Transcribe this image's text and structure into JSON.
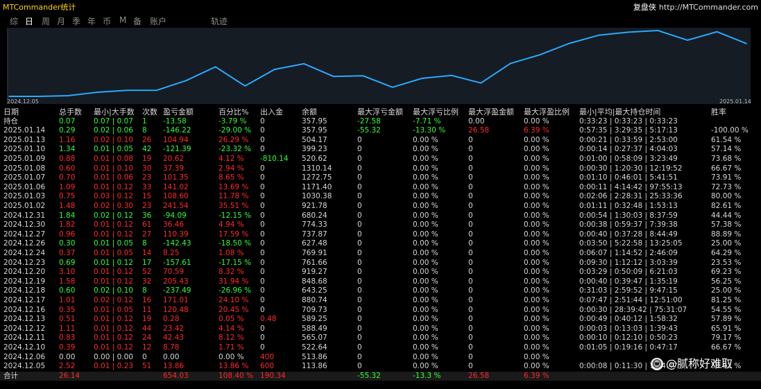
{
  "header": {
    "app_title": "MTCommander统计",
    "brand_name": "复盘侠",
    "brand_url": "http://MTCommander.com"
  },
  "tabs": [
    {
      "label": "综",
      "active": false
    },
    {
      "label": "日",
      "active": true
    },
    {
      "label": "周",
      "active": false
    },
    {
      "label": "月",
      "active": false
    },
    {
      "label": "季",
      "active": false
    },
    {
      "label": "年",
      "active": false
    },
    {
      "label": "币",
      "active": false
    },
    {
      "label": "M",
      "active": false
    },
    {
      "label": "备",
      "active": false
    },
    {
      "label": "账户",
      "active": false
    },
    {
      "label": "轨迹",
      "active": false
    }
  ],
  "chart_data": {
    "type": "line",
    "xlabel_start": "2024.12.05",
    "xlabel_end": "2025.01.14",
    "x": [
      "2024.12.05",
      "2024.12.06",
      "2024.12.10",
      "2024.12.11",
      "2024.12.12",
      "2024.12.13",
      "2024.12.16",
      "2024.12.17",
      "2024.12.18",
      "2024.12.19",
      "2024.12.20",
      "2024.12.23",
      "2024.12.24",
      "2024.12.26",
      "2024.12.27",
      "2024.12.30",
      "2024.12.31",
      "2025.01.02",
      "2025.01.03",
      "2025.01.06",
      "2025.01.07",
      "2025.01.08",
      "2025.01.09",
      "2025.01.10",
      "2025.01.13",
      "2025.01.14"
    ],
    "values": [
      13.86,
      13.86,
      22.64,
      65.07,
      88.49,
      88.77,
      209.25,
      380.26,
      142.77,
      348.2,
      418.79,
      261.18,
      269.43,
      126.95,
      237.34,
      273.8,
      179.71,
      421.3,
      530.2,
      671.22,
      772.35,
      809.74,
      830.36,
      709.97,
      814.91,
      668.69
    ],
    "line_color": "#29aaff"
  },
  "columns": [
    "日期",
    "总手数",
    "最小|大手数",
    "次数",
    "盈亏金额",
    "百分比%",
    "出入金",
    "余额",
    "最大浮亏金额",
    "最大浮亏比例",
    "最大浮盈金额",
    "最大浮盈比例",
    "最小|平均|最大持仓时间",
    "胜率"
  ],
  "rows": [
    {
      "date": "持仓",
      "c": "g",
      "lots": "0.07",
      "minmax": "0.07 | 0.07",
      "count": "1",
      "pnl": "-13.58",
      "pct": "-3.79 %",
      "io": "0",
      "io_c": "w",
      "bal": "357.95",
      "mfl": "-27.58",
      "mfl_c": "g",
      "mflp": "-7.71 %",
      "mflp_c": "g",
      "mfp": "0.00",
      "mfp_c": "w",
      "mfpp": "0.00 %",
      "mfpp_c": "w",
      "time": "0:33:23 | 0:33:23 | 0:33:23",
      "win": ""
    },
    {
      "date": "2025.01.14",
      "c": "g",
      "lots": "0.29",
      "minmax": "0.02 | 0.06",
      "count": "8",
      "pnl": "-146.22",
      "pct": "-29.00 %",
      "io": "0",
      "io_c": "w",
      "bal": "357.95",
      "mfl": "-55.32",
      "mfl_c": "g",
      "mflp": "-13.30 %",
      "mflp_c": "g",
      "mfp": "26.58",
      "mfp_c": "r",
      "mfpp": "6.39 %",
      "mfpp_c": "r",
      "time": "0:57:35 | 3:29:35 | 5:17:13",
      "win": "-100.00 %"
    },
    {
      "date": "2025.01.13",
      "c": "r",
      "lots": "1.16",
      "minmax": "0.02 | 0.10",
      "count": "26",
      "pnl": "104.94",
      "pct": "26.29 %",
      "io": "0",
      "io_c": "w",
      "bal": "504.17",
      "mfl": "0",
      "mfl_c": "w",
      "mflp": "0.00 %",
      "mflp_c": "w",
      "mfp": "0",
      "mfp_c": "w",
      "mfpp": "0.00 %",
      "mfpp_c": "w",
      "time": "0:00:21 | 0:33:59 | 2:53:00",
      "win": "61.54 %"
    },
    {
      "date": "2025.01.10",
      "c": "g",
      "lots": "1.34",
      "minmax": "0.01 | 0.05",
      "count": "42",
      "pnl": "-121.39",
      "pct": "-23.32 %",
      "io": "0",
      "io_c": "w",
      "bal": "399.23",
      "mfl": "0",
      "mfl_c": "w",
      "mflp": "0.00 %",
      "mflp_c": "w",
      "mfp": "0",
      "mfp_c": "w",
      "mfpp": "0.00 %",
      "mfpp_c": "w",
      "time": "0:00:14 | 0:27:37 | 4:04:03",
      "win": "57.14 %"
    },
    {
      "date": "2025.01.09",
      "c": "r",
      "lots": "0.88",
      "minmax": "0.01 | 0.08",
      "count": "19",
      "pnl": "20.62",
      "pct": "4.12 %",
      "io": "-810.14",
      "io_c": "g",
      "bal": "520.62",
      "mfl": "0",
      "mfl_c": "w",
      "mflp": "0.00 %",
      "mflp_c": "w",
      "mfp": "0",
      "mfp_c": "w",
      "mfpp": "0.00 %",
      "mfpp_c": "w",
      "time": "0:01:00 | 0:58:09 | 3:23:49",
      "win": "73.68 %"
    },
    {
      "date": "2025.01.08",
      "c": "r",
      "lots": "0.60",
      "minmax": "0.01 | 0.10",
      "count": "30",
      "pnl": "37.39",
      "pct": "2.94 %",
      "io": "0",
      "io_c": "w",
      "bal": "1310.14",
      "mfl": "0",
      "mfl_c": "w",
      "mflp": "0.00 %",
      "mflp_c": "w",
      "mfp": "0",
      "mfp_c": "w",
      "mfpp": "0.00 %",
      "mfpp_c": "w",
      "time": "0:00:30 | 1:20:30 | 12:19:52",
      "win": "66.67 %"
    },
    {
      "date": "2025.01.07",
      "c": "r",
      "lots": "0.70",
      "minmax": "0.01 | 0.06",
      "count": "23",
      "pnl": "101.35",
      "pct": "8.65 %",
      "io": "0",
      "io_c": "w",
      "bal": "1272.75",
      "mfl": "0",
      "mfl_c": "w",
      "mflp": "0.00 %",
      "mflp_c": "w",
      "mfp": "0",
      "mfp_c": "w",
      "mfpp": "0.00 %",
      "mfpp_c": "w",
      "time": "0:01:10 | 0:46:01 | 5:41:51",
      "win": "73.91 %"
    },
    {
      "date": "2025.01.06",
      "c": "r",
      "lots": "1.09",
      "minmax": "0.01 | 0.12",
      "count": "33",
      "pnl": "141.02",
      "pct": "13.69 %",
      "io": "0",
      "io_c": "w",
      "bal": "1171.40",
      "mfl": "0",
      "mfl_c": "w",
      "mflp": "0.00 %",
      "mflp_c": "w",
      "mfp": "0",
      "mfp_c": "w",
      "mfpp": "0.00 %",
      "mfpp_c": "w",
      "time": "0:00:11 | 4:14:42 | 97:55:13",
      "win": "72.73 %"
    },
    {
      "date": "2025.01.03",
      "c": "r",
      "lots": "0.75",
      "minmax": "0.03 | 0.12",
      "count": "15",
      "pnl": "108.60",
      "pct": "11.78 %",
      "io": "0",
      "io_c": "w",
      "bal": "1030.38",
      "mfl": "0",
      "mfl_c": "w",
      "mflp": "0.00 %",
      "mflp_c": "w",
      "mfp": "0",
      "mfp_c": "w",
      "mfpp": "0.00 %",
      "mfpp_c": "w",
      "time": "0:02:06 | 2:28:31 | 25:33:36",
      "win": "80.00 %"
    },
    {
      "date": "2025.01.02",
      "c": "r",
      "lots": "1.48",
      "minmax": "0.02 | 0.30",
      "count": "23",
      "pnl": "241.54",
      "pct": "35.51 %",
      "io": "0",
      "io_c": "w",
      "bal": "921.78",
      "mfl": "0",
      "mfl_c": "w",
      "mflp": "0.00 %",
      "mflp_c": "w",
      "mfp": "0",
      "mfp_c": "w",
      "mfpp": "0.00 %",
      "mfpp_c": "w",
      "time": "0:01:11 | 0:32:48 | 1:53:13",
      "win": "82.61 %"
    },
    {
      "date": "2024.12.31",
      "c": "g",
      "lots": "1.84",
      "minmax": "0.02 | 0.12",
      "count": "36",
      "pnl": "-94.09",
      "pct": "-12.15 %",
      "io": "0",
      "io_c": "w",
      "bal": "680.24",
      "mfl": "0",
      "mfl_c": "w",
      "mflp": "0.00 %",
      "mflp_c": "w",
      "mfp": "0",
      "mfp_c": "w",
      "mfpp": "0.00 %",
      "mfpp_c": "w",
      "time": "0:00:54 | 1:30:03 | 8:37:59",
      "win": "44.44 %"
    },
    {
      "date": "2024.12.30",
      "c": "r",
      "lots": "1.82",
      "minmax": "0.01 | 0.12",
      "count": "61",
      "pnl": "36.46",
      "pct": "4.94 %",
      "io": "0",
      "io_c": "w",
      "bal": "774.33",
      "mfl": "0",
      "mfl_c": "w",
      "mflp": "0.00 %",
      "mflp_c": "w",
      "mfp": "0",
      "mfp_c": "w",
      "mfpp": "0.00 %",
      "mfpp_c": "w",
      "time": "0:00:38 | 0:59:37 | 7:39:38",
      "win": "57.38 %"
    },
    {
      "date": "2024.12.27",
      "c": "r",
      "lots": "0.96",
      "minmax": "0.01 | 0.12",
      "count": "27",
      "pnl": "110.39",
      "pct": "17.59 %",
      "io": "0",
      "io_c": "w",
      "bal": "737.87",
      "mfl": "0",
      "mfl_c": "w",
      "mflp": "0.00 %",
      "mflp_c": "w",
      "mfp": "0",
      "mfp_c": "w",
      "mfpp": "0.00 %",
      "mfpp_c": "w",
      "time": "0:00:40 | 0:37:28 | 8:44:49",
      "win": "88.89 %"
    },
    {
      "date": "2024.12.26",
      "c": "g",
      "lots": "0.30",
      "minmax": "0.01 | 0.05",
      "count": "8",
      "pnl": "-142.43",
      "pct": "-18.50 %",
      "io": "0",
      "io_c": "w",
      "bal": "627.48",
      "mfl": "0",
      "mfl_c": "w",
      "mflp": "0.00 %",
      "mflp_c": "w",
      "mfp": "0",
      "mfp_c": "w",
      "mfpp": "0.00 %",
      "mfpp_c": "w",
      "time": "0:03:50 | 5:22:58 | 13:25:05",
      "win": "25.00 %"
    },
    {
      "date": "2024.12.24",
      "c": "r",
      "lots": "0.37",
      "minmax": "0.01 | 0.05",
      "count": "14",
      "pnl": "8.25",
      "pct": "1.08 %",
      "io": "0",
      "io_c": "w",
      "bal": "769.91",
      "mfl": "0",
      "mfl_c": "w",
      "mflp": "0.00 %",
      "mflp_c": "w",
      "mfp": "0",
      "mfp_c": "w",
      "mfpp": "0.00 %",
      "mfpp_c": "w",
      "time": "0:06:07 | 1:14:52 | 2:46:09",
      "win": "64.29 %"
    },
    {
      "date": "2024.12.23",
      "c": "g",
      "lots": "0.69",
      "minmax": "0.01 | 0.12",
      "count": "17",
      "pnl": "-157.61",
      "pct": "-17.15 %",
      "io": "0",
      "io_c": "w",
      "bal": "761.66",
      "mfl": "0",
      "mfl_c": "w",
      "mflp": "0.00 %",
      "mflp_c": "w",
      "mfp": "0",
      "mfp_c": "w",
      "mfpp": "0.00 %",
      "mfpp_c": "w",
      "time": "0:09:30 | 1:12:12 | 3:03:39",
      "win": "23.53 %"
    },
    {
      "date": "2024.12.20",
      "c": "r",
      "lots": "3.10",
      "minmax": "0.01 | 0.12",
      "count": "52",
      "pnl": "70.59",
      "pct": "8.32 %",
      "io": "0",
      "io_c": "w",
      "bal": "919.27",
      "mfl": "0",
      "mfl_c": "w",
      "mflp": "0.00 %",
      "mflp_c": "w",
      "mfp": "0",
      "mfp_c": "w",
      "mfpp": "0.00 %",
      "mfpp_c": "w",
      "time": "0:03:29 | 0:50:09 | 6:21:03",
      "win": "69.23 %"
    },
    {
      "date": "2024.12.19",
      "c": "r",
      "lots": "1.58",
      "minmax": "0.01 | 0.12",
      "count": "32",
      "pnl": "205.43",
      "pct": "31.94 %",
      "io": "0",
      "io_c": "w",
      "bal": "848.68",
      "mfl": "0",
      "mfl_c": "w",
      "mflp": "0.00 %",
      "mflp_c": "w",
      "mfp": "0",
      "mfp_c": "w",
      "mfpp": "0.00 %",
      "mfpp_c": "w",
      "time": "0:00:40 | 0:39:47 | 1:35:19",
      "win": "56.25 %"
    },
    {
      "date": "2024.12.18",
      "c": "g",
      "lots": "0.60",
      "minmax": "0.02 | 0.10",
      "count": "8",
      "pnl": "-237.49",
      "pct": "-26.96 %",
      "io": "0",
      "io_c": "w",
      "bal": "643.25",
      "mfl": "0",
      "mfl_c": "w",
      "mflp": "0.00 %",
      "mflp_c": "w",
      "mfp": "0",
      "mfp_c": "w",
      "mfpp": "0.00 %",
      "mfpp_c": "w",
      "time": "0:31:03 | 2:59:52 | 9:47:15",
      "win": "25.00 %"
    },
    {
      "date": "2024.12.17",
      "c": "r",
      "lots": "1.01",
      "minmax": "0.02 | 0.12",
      "count": "16",
      "pnl": "171.01",
      "pct": "24.10 %",
      "io": "0",
      "io_c": "w",
      "bal": "880.74",
      "mfl": "0",
      "mfl_c": "w",
      "mflp": "0.00 %",
      "mflp_c": "w",
      "mfp": "0",
      "mfp_c": "w",
      "mfpp": "0.00 %",
      "mfpp_c": "w",
      "time": "0:07:47 | 2:51:44 | 12:51:00",
      "win": "81.25 %"
    },
    {
      "date": "2024.12.16",
      "c": "r",
      "lots": "0.35",
      "minmax": "0.01 | 0.05",
      "count": "11",
      "pnl": "120.48",
      "pct": "20.45 %",
      "io": "0",
      "io_c": "w",
      "bal": "709.73",
      "mfl": "0",
      "mfl_c": "w",
      "mflp": "0.00 %",
      "mflp_c": "w",
      "mfp": "0",
      "mfp_c": "w",
      "mfpp": "0.00 %",
      "mfpp_c": "w",
      "time": "0:00:30 | 28:39:42 | 75:31:07",
      "win": "54.55 %"
    },
    {
      "date": "2024.12.13",
      "c": "r",
      "lots": "0.51",
      "minmax": "0.01 | 0.12",
      "count": "19",
      "pnl": "0.28",
      "pct": "0.05 %",
      "io": "0.48",
      "io_c": "r",
      "bal": "589.25",
      "mfl": "0",
      "mfl_c": "w",
      "mflp": "0.00 %",
      "mflp_c": "w",
      "mfp": "0",
      "mfp_c": "w",
      "mfpp": "0.00 %",
      "mfpp_c": "w",
      "time": "0:00:49 | 0:40:12 | 1:58:32",
      "win": "57.89 %"
    },
    {
      "date": "2024.12.12",
      "c": "r",
      "lots": "1.11",
      "minmax": "0.01 | 0.12",
      "count": "44",
      "pnl": "23.42",
      "pct": "4.14 %",
      "io": "0",
      "io_c": "w",
      "bal": "588.49",
      "mfl": "0",
      "mfl_c": "w",
      "mflp": "0.00 %",
      "mflp_c": "w",
      "mfp": "0",
      "mfp_c": "w",
      "mfpp": "0.00 %",
      "mfpp_c": "w",
      "time": "0:00:03 | 0:13:03 | 1:39:43",
      "win": "65.91 %"
    },
    {
      "date": "2024.12.11",
      "c": "r",
      "lots": "0.83",
      "minmax": "0.01 | 0.12",
      "count": "24",
      "pnl": "42.43",
      "pct": "8.12 %",
      "io": "0",
      "io_c": "w",
      "bal": "565.07",
      "mfl": "0",
      "mfl_c": "w",
      "mflp": "0.00 %",
      "mflp_c": "w",
      "mfp": "0",
      "mfp_c": "w",
      "mfpp": "0.00 %",
      "mfpp_c": "w",
      "time": "0:00:10 | 0:12:10 | 0:50:23",
      "win": "79.17 %"
    },
    {
      "date": "2024.12.10",
      "c": "r",
      "lots": "0.39",
      "minmax": "0.01 | 0.12",
      "count": "12",
      "pnl": "8.78",
      "pct": "1.71 %",
      "io": "0",
      "io_c": "w",
      "bal": "522.64",
      "mfl": "0",
      "mfl_c": "w",
      "mflp": "0.00 %",
      "mflp_c": "w",
      "mfp": "0",
      "mfp_c": "w",
      "mfpp": "0.00 %",
      "mfpp_c": "w",
      "time": "0:01:05 | 0:19:16 | 0:47:17",
      "win": "66.67 %"
    },
    {
      "date": "2024.12.06",
      "c": "w",
      "lots": "0.00",
      "minmax": "0.00 | 0.00",
      "count": "0",
      "pnl": "0.00",
      "pct": "0.00 %",
      "io": "400",
      "io_c": "r",
      "bal": "513.86",
      "mfl": "0",
      "mfl_c": "w",
      "mflp": "0.00 %",
      "mflp_c": "w",
      "mfp": "0",
      "mfp_c": "w",
      "mfpp": "0.00 %",
      "mfpp_c": "w",
      "time": "",
      "win": ""
    },
    {
      "date": "2024.12.05",
      "c": "r",
      "lots": "2.52",
      "minmax": "0.01 | 0.23",
      "count": "51",
      "pnl": "13.86",
      "pct": "13.86 %",
      "io": "600",
      "io_c": "r",
      "bal": "113.86",
      "mfl": "0",
      "mfl_c": "w",
      "mflp": "0.00 %",
      "mflp_c": "w",
      "mfp": "0",
      "mfp_c": "w",
      "mfpp": "0.00 %",
      "mfpp_c": "w",
      "time": "0:00:08 | 0:11:30 | 1:04:47",
      "win": "58.82 %"
    }
  ],
  "total": {
    "label": "合计",
    "lots": "26.14",
    "pnl": "654.03",
    "pct": "108.40 %",
    "io": "190.34",
    "mfl": "-55.32",
    "mflp": "-13.3 %",
    "mfp": "26.58",
    "mfpp": "6.39 %"
  },
  "watermark": {
    "icon": "weibo-icon",
    "text": "@腻称好难取"
  }
}
